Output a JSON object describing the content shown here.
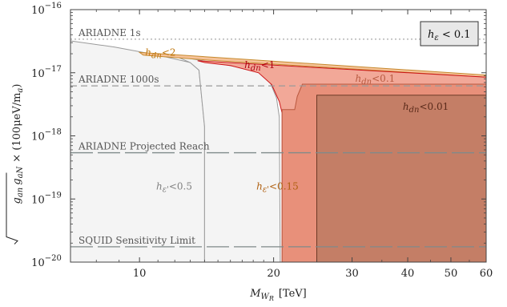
{
  "chart_data": {
    "type": "area",
    "xlabel": {
      "main": "M",
      "sub": "W",
      "subsub": "R",
      "unit": "[TeV]"
    },
    "ylabel": {
      "sqrt_a": "g",
      "sqrt_a_sub": "an",
      "sqrt_b": "g",
      "sqrt_b_sub": "aN",
      "factor": "× (100μeV/m",
      "factor_sub": "a",
      "close": ")"
    },
    "xscale": "log",
    "yscale": "log",
    "xlim": [
      7,
      60
    ],
    "ylim": [
      1e-20,
      1e-16
    ],
    "x_ticks": [
      {
        "value": 10,
        "label": "10"
      },
      {
        "value": 20,
        "label": "20"
      },
      {
        "value": 30,
        "label": "30"
      },
      {
        "value": 40,
        "label": "40"
      },
      {
        "value": 50,
        "label": "50"
      },
      {
        "value": 60,
        "label": "60"
      }
    ],
    "y_ticks": [
      {
        "value": 1e-20,
        "base": "10",
        "exp": "−20"
      },
      {
        "value": 1e-19,
        "base": "10",
        "exp": "−19"
      },
      {
        "value": 1e-18,
        "base": "10",
        "exp": "−18"
      },
      {
        "value": 1e-17,
        "base": "10",
        "exp": "−17"
      },
      {
        "value": 1e-16,
        "base": "10",
        "exp": "−16"
      }
    ],
    "legend": {
      "text_h": "h",
      "text_sub": "ε",
      "text_rest": " < 0.1",
      "placement": "top-right"
    },
    "reference_lines": [
      {
        "label": "ARIADNE 1s",
        "y": 3.4e-17,
        "style": "dotted",
        "color": "#a8a8a8"
      },
      {
        "label": "ARIADNE 1000s",
        "y": 6.2e-18,
        "style": "dashed",
        "color": "#9a9a9a"
      },
      {
        "label": "ARIADNE Projected Reach",
        "y": 5.4e-19,
        "style": "long-dash",
        "color": "#7f8a8a"
      },
      {
        "label": "SQUID Sensitivity Limit",
        "y": 1.75e-20,
        "style": "long-dash",
        "color": "#7f8a8a"
      }
    ],
    "regions": [
      {
        "label": {
          "h": "h",
          "sub": "ε'",
          "rest": "<0.5"
        },
        "label_at": [
          10.9,
          1.4e-19
        ],
        "label_color": "#808080",
        "fill": "#f4f4f4",
        "stroke": "#9a9a9a",
        "points": [
          [
            7,
            3.2e-17
          ],
          [
            8.8,
            2.55e-17
          ],
          [
            11,
            1.9e-17
          ],
          [
            13,
            1.45e-17
          ],
          [
            13.6,
            1.1e-17
          ],
          [
            14,
            1.4e-18
          ],
          [
            14,
            1e-20
          ],
          [
            7,
            1e-20
          ]
        ]
      },
      {
        "label": {
          "h": "h",
          "sub": "ε'",
          "rest": "<0.15"
        },
        "label_at": [
          18.3,
          1.4e-19
        ],
        "label_color": "#b06010",
        "fill": "#f4f4f4",
        "stroke": "#9a9a9a",
        "points": [
          [
            12,
            1.85e-17
          ],
          [
            17,
            1.2e-17
          ],
          [
            18.8,
            1.05e-17
          ],
          [
            19.5,
            8e-18
          ],
          [
            20.3,
            4e-18
          ],
          [
            20.6,
            2e-18
          ],
          [
            20.7,
            1e-20
          ],
          [
            14,
            1e-20
          ],
          [
            14,
            1.4e-18
          ],
          [
            13.6,
            1.1e-17
          ],
          [
            13,
            1.45e-17
          ]
        ]
      },
      {
        "label": {
          "h": "h",
          "sub": "dn",
          "rest": "<2"
        },
        "label_at": [
          10.3,
          1.85e-17
        ],
        "label_color": "#c07810",
        "fill": "#f6c39a",
        "stroke": "#c68a2e",
        "points": [
          [
            10,
            2.1e-17
          ],
          [
            60,
            9.2e-18
          ],
          [
            60,
            8.5e-18
          ],
          [
            14,
            1.6e-17
          ],
          [
            10.2,
            1.9e-17
          ]
        ]
      },
      {
        "label": {
          "h": "h",
          "sub": "dn",
          "rest": "<1"
        },
        "label_at": [
          17.2,
          1.18e-17
        ],
        "label_color": "#b00010",
        "fill": "#f2a898",
        "stroke": "#cc1418",
        "points": [
          [
            13.5,
            1.55e-17
          ],
          [
            60,
            8.5e-18
          ],
          [
            60,
            1e-20
          ],
          [
            20.9,
            1e-20
          ],
          [
            20.9,
            2.3e-18
          ],
          [
            20.6,
            3.5e-18
          ],
          [
            19.8,
            6.5e-18
          ],
          [
            18.5,
            1e-17
          ],
          [
            16,
            1.3e-17
          ],
          [
            14,
            1.45e-17
          ]
        ]
      },
      {
        "label": {
          "h": "h",
          "sub": "dn",
          "rest": "<0.1"
        },
        "label_at": [
          30.5,
          7.2e-18
        ],
        "label_color": "#b85a40",
        "fill": "#e8907a",
        "stroke": "#b9583f",
        "points": [
          [
            23.2,
            6.6e-18
          ],
          [
            60,
            6.6e-18
          ],
          [
            60,
            1e-20
          ],
          [
            20.9,
            1e-20
          ],
          [
            20.9,
            2.6e-18
          ],
          [
            22.3,
            2.6e-18
          ],
          [
            22.6,
            4.2e-18
          ]
        ]
      },
      {
        "label": {
          "h": "h",
          "sub": "dn",
          "rest": "<0.01"
        },
        "label_at": [
          39,
          2.6e-18
        ],
        "label_color": "#5a2a1a",
        "fill": "#c47e66",
        "stroke": "#6e3a26",
        "points": [
          [
            25,
            4.4e-18
          ],
          [
            60,
            4.4e-18
          ],
          [
            60,
            1e-20
          ],
          [
            25,
            1e-20
          ]
        ]
      }
    ]
  }
}
